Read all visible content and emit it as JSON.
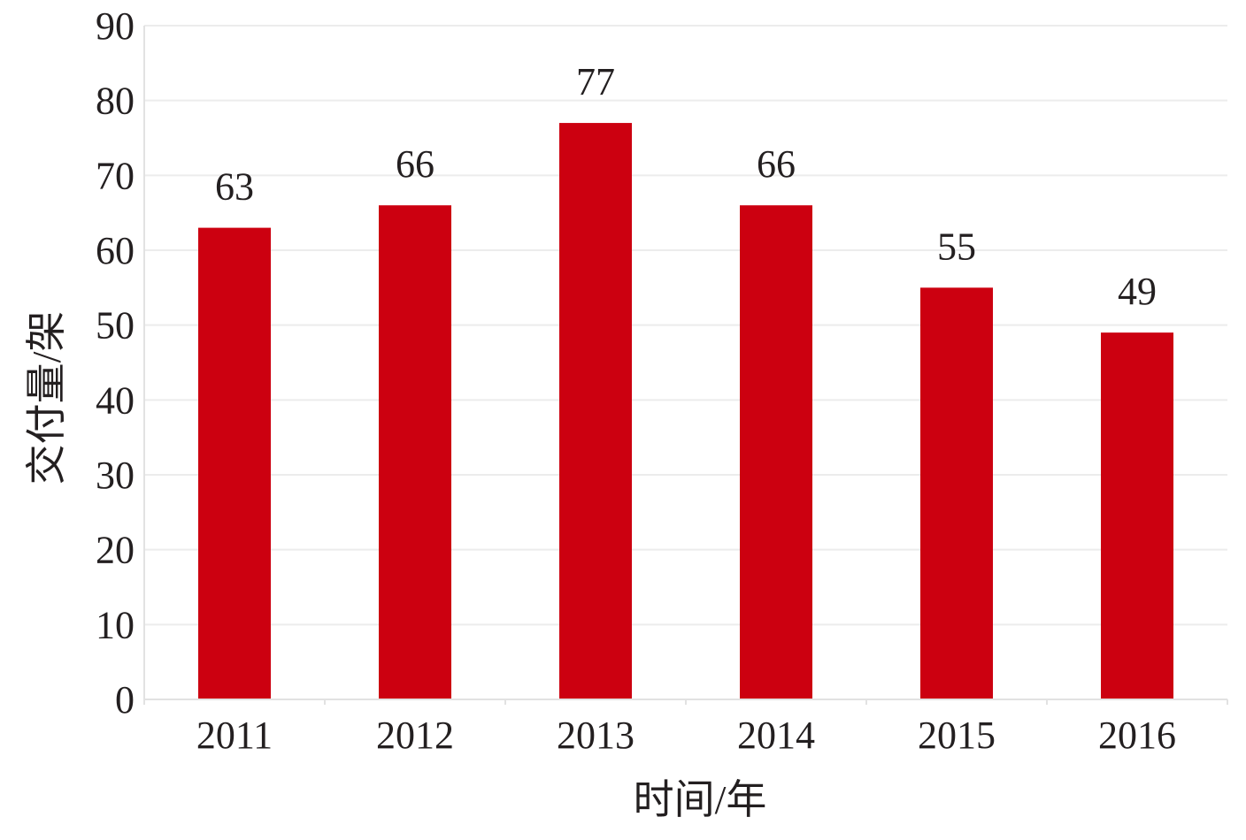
{
  "chart_data": {
    "type": "bar",
    "title": "",
    "xlabel": "时间/年",
    "ylabel": "交付量/架",
    "categories": [
      "2011",
      "2012",
      "2013",
      "2014",
      "2015",
      "2016"
    ],
    "values": [
      63,
      66,
      77,
      66,
      55,
      49
    ],
    "data_labels": [
      "63",
      "66",
      "77",
      "66",
      "55",
      "49"
    ],
    "ylim": [
      0,
      90
    ],
    "yticks": [
      0,
      10,
      20,
      30,
      40,
      50,
      60,
      70,
      80,
      90
    ],
    "grid": true,
    "legend": "none",
    "bar_color": "#cc0010"
  }
}
